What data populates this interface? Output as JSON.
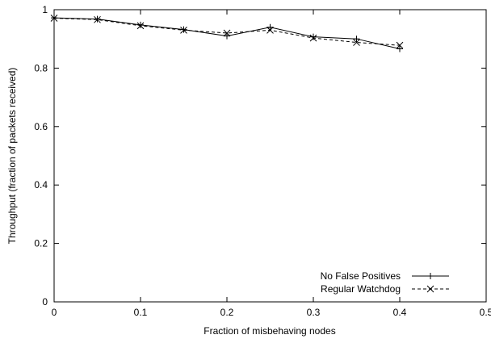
{
  "chart_data": {
    "type": "line",
    "title": "",
    "xlabel": "Fraction of misbehaving nodes",
    "ylabel": "Throughput (fraction of packets received)",
    "xlim": [
      0,
      0.5
    ],
    "ylim": [
      0,
      1
    ],
    "xticks": [
      0,
      0.1,
      0.2,
      0.3,
      0.4,
      0.5
    ],
    "xtick_labels": [
      "0",
      "0.1",
      "0.2",
      "0.3",
      "0.4",
      "0.5"
    ],
    "yticks": [
      0,
      0.2,
      0.4,
      0.6,
      0.8,
      1
    ],
    "ytick_labels": [
      "0",
      "0.2",
      "0.4",
      "0.6",
      "0.8",
      "1"
    ],
    "grid": false,
    "legend_position": "bottom-right",
    "x": [
      0,
      0.05,
      0.1,
      0.15,
      0.2,
      0.25,
      0.3,
      0.35,
      0.4
    ],
    "series": [
      {
        "name": "No False Positives",
        "values": [
          0.972,
          0.968,
          0.948,
          0.932,
          0.91,
          0.94,
          0.907,
          0.9,
          0.866
        ],
        "line_style": "solid",
        "marker": "plus",
        "color": "#000000"
      },
      {
        "name": "Regular Watchdog",
        "values": [
          0.971,
          0.966,
          0.945,
          0.93,
          0.92,
          0.93,
          0.903,
          0.888,
          0.878
        ],
        "line_style": "dashed",
        "marker": "cross",
        "color": "#000000"
      }
    ]
  }
}
